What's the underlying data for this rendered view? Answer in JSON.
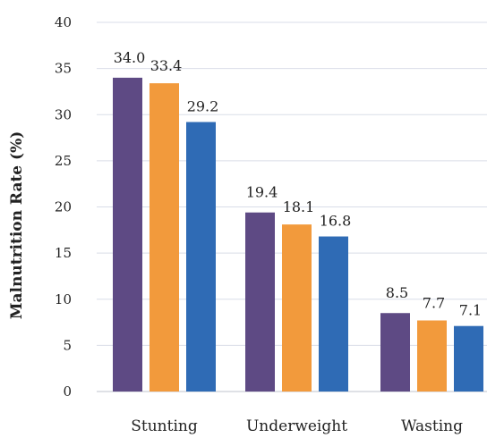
{
  "chart_data": {
    "type": "bar",
    "categories": [
      "Stunting",
      "Underweight",
      "Wasting"
    ],
    "series": [
      {
        "values": [
          34.0,
          19.4,
          8.5
        ],
        "color": "#5e4a84",
        "labels": [
          "34.0",
          "19.4",
          "8.5"
        ]
      },
      {
        "values": [
          33.4,
          18.1,
          7.7
        ],
        "color": "#f29a3c",
        "labels": [
          "33.4",
          "18.1",
          "7.7"
        ]
      },
      {
        "values": [
          29.2,
          16.8,
          7.1
        ],
        "color": "#2f6bb5",
        "labels": [
          "29.2",
          "16.8",
          "7.1"
        ]
      }
    ],
    "ylabel": "Malnutrition Rate (%)",
    "xlabel": "",
    "ylim": [
      0,
      40
    ],
    "yticks": [
      0,
      5,
      10,
      15,
      20,
      25,
      30,
      35,
      40
    ],
    "grid": true,
    "legend": "none"
  }
}
